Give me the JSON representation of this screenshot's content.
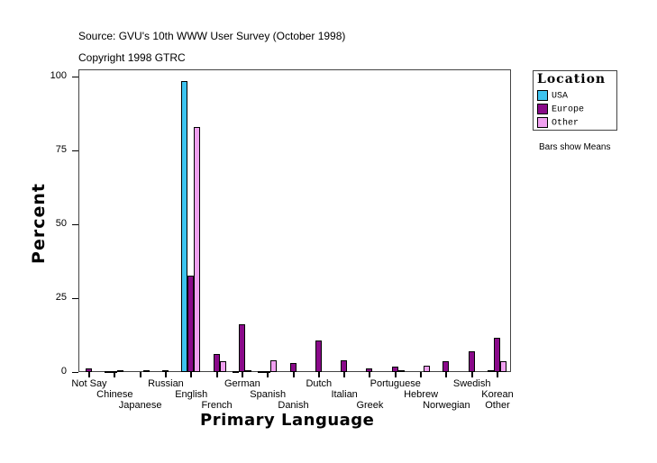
{
  "header": {
    "source": "Source: GVU's 10th WWW User Survey (October 1998)",
    "copyright": "Copyright 1998 GTRC"
  },
  "legend": {
    "title": "Location",
    "items": [
      {
        "label": "USA",
        "color": "#3ec4f0"
      },
      {
        "label": "Europe",
        "color": "#8a0a8a"
      },
      {
        "label": "Other",
        "color": "#f0a0f0"
      }
    ]
  },
  "note": "Bars show Means",
  "axes": {
    "ylabel": "Percent",
    "xlabel": "Primary Language",
    "yticks": [
      "0",
      "25",
      "50",
      "75",
      "100"
    ]
  },
  "chart_data": {
    "type": "bar",
    "title": "",
    "xlabel": "Primary Language",
    "ylabel": "Percent",
    "ylim": [
      0,
      100
    ],
    "grid": false,
    "legend_position": "right",
    "legend_title": "Location",
    "annotations": [
      "Source: GVU's 10th WWW User Survey (October 1998)",
      "Copyright 1998 GTRC",
      "Bars show Means"
    ],
    "categories": [
      "Not Say",
      "Chinese",
      "Japanese",
      "Russian",
      "English",
      "French",
      "German",
      "Spanish",
      "Danish",
      "Dutch",
      "Italian",
      "Greek",
      "Portuguese",
      "Hebrew",
      "Norwegian",
      "Swedish",
      "Korean",
      "Other"
    ],
    "series": [
      {
        "name": "USA",
        "color": "#3ec4f0",
        "values": [
          0,
          0.1,
          0,
          0,
          98.5,
          0,
          0.2,
          0.3,
          0,
          0,
          0,
          0,
          0,
          0,
          0,
          0,
          0,
          0.5
        ]
      },
      {
        "name": "Europe",
        "color": "#8a0a8a",
        "values": [
          1.2,
          0.2,
          0,
          0.5,
          32.6,
          6.1,
          16.2,
          0.3,
          3.1,
          10.7,
          3.9,
          1.2,
          1.9,
          0,
          3.6,
          7.0,
          0,
          11.6
        ]
      },
      {
        "name": "Other",
        "color": "#f0a0f0",
        "values": [
          0,
          0.5,
          0.6,
          0,
          83.0,
          3.7,
          0.7,
          4.0,
          0,
          0,
          0,
          0,
          0.5,
          2.2,
          0,
          0,
          1.2,
          3.6
        ]
      }
    ]
  }
}
